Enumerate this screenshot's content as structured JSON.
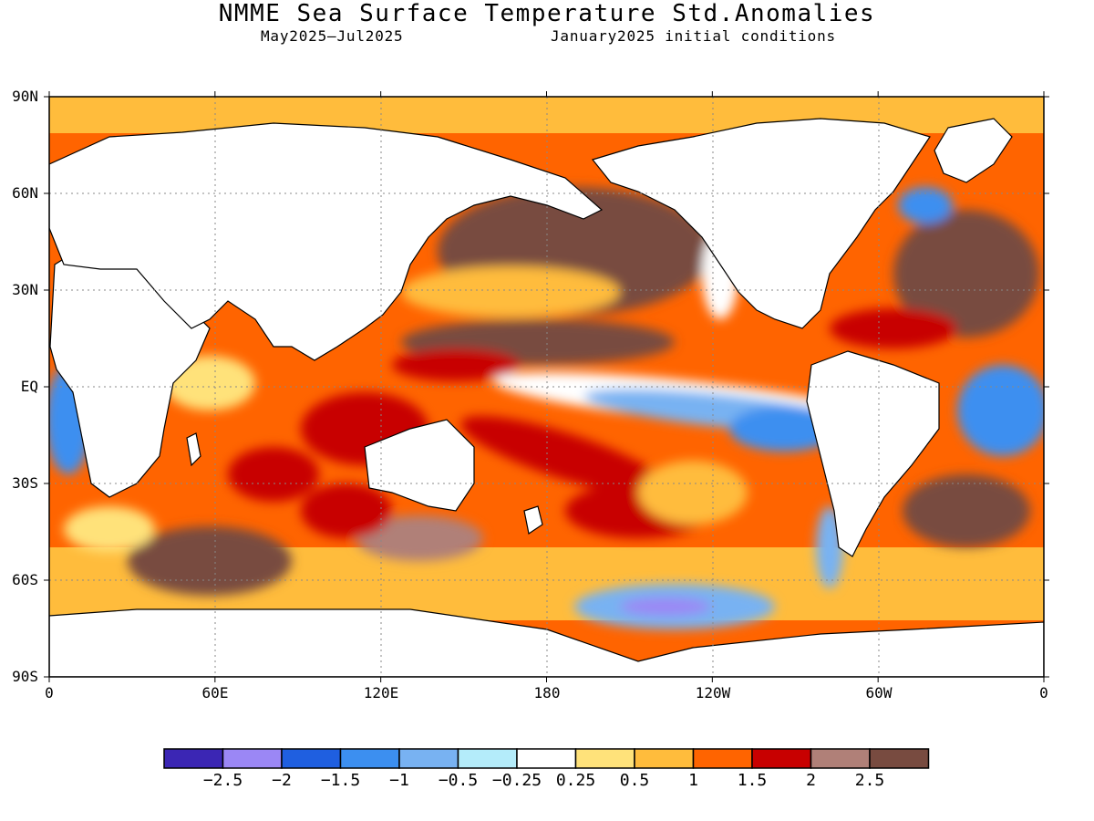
{
  "header": {
    "title": "NMME Sea Surface Temperature Std.Anomalies",
    "period": "May2025–Jul2025",
    "init": "January2025 initial conditions"
  },
  "map": {
    "lat_ticks": [
      "90N",
      "60N",
      "30N",
      "EQ",
      "30S",
      "60S",
      "90S"
    ],
    "lon_ticks": [
      "0",
      "60E",
      "120E",
      "180",
      "120W",
      "60W",
      "0"
    ],
    "lat_range": [
      -90,
      90
    ],
    "lon_range": [
      0,
      360
    ],
    "projection": "cylindrical-equidistant",
    "grid": true
  },
  "colorbar": {
    "colors": [
      "#3b26b4",
      "#9b87f5",
      "#1f5fe0",
      "#3c8ff0",
      "#78b2f2",
      "#b4ecfa",
      "#ffffff",
      "#ffe27a",
      "#ffbc3c",
      "#ff6400",
      "#c80000",
      "#b08078",
      "#784b40"
    ],
    "labels": [
      "−2.5",
      "−2",
      "−1.5",
      "−1",
      "−0.5",
      "−0.25",
      "0.25",
      "0.5",
      "1",
      "1.5",
      "2",
      "2.5"
    ]
  }
}
